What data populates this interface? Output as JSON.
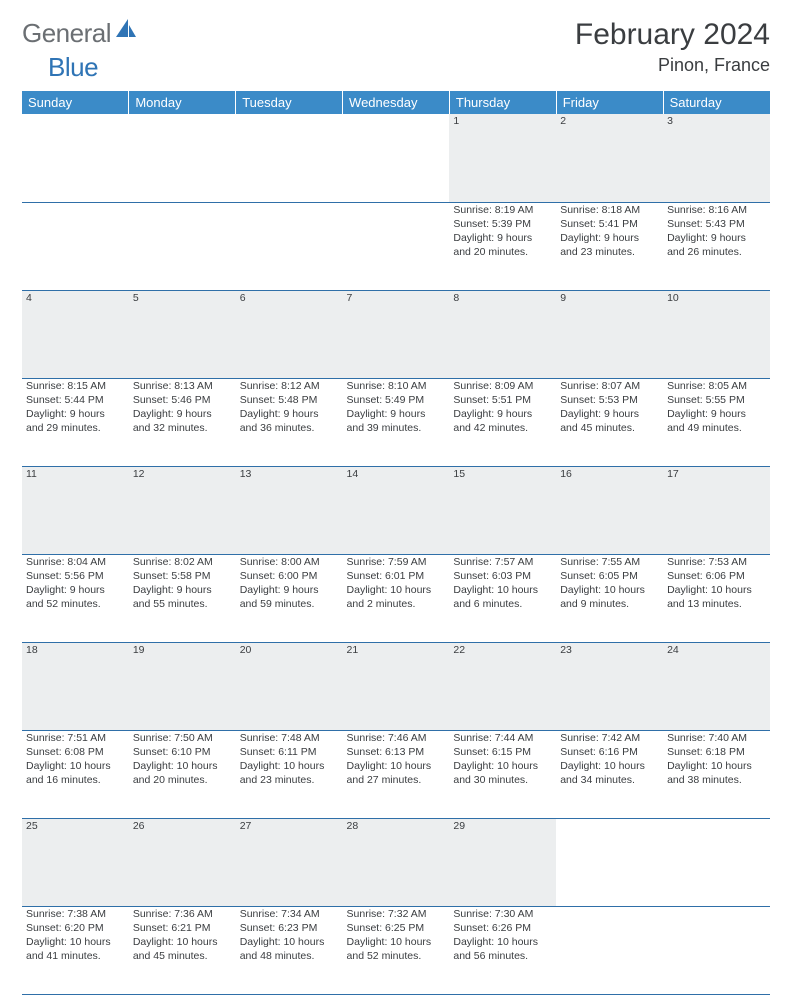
{
  "brand": {
    "general": "General",
    "blue": "Blue"
  },
  "title": "February 2024",
  "location": "Pinon, France",
  "weekdays": [
    "Sunday",
    "Monday",
    "Tuesday",
    "Wednesday",
    "Thursday",
    "Friday",
    "Saturday"
  ],
  "colors": {
    "header_bg": "#3b8bc8",
    "header_text": "#ffffff",
    "daynum_bg": "#eceeef",
    "daynum_text": "#5d6063",
    "body_text": "#3a3d40",
    "row_divider": "#2f6fa8",
    "logo_gray": "#6b6f73",
    "logo_blue": "#2f74b5",
    "background": "#ffffff"
  },
  "fonts": {
    "title_size_pt": 22,
    "location_size_pt": 14,
    "weekday_size_pt": 10,
    "daynum_size_pt": 9,
    "body_size_pt": 8
  },
  "layout": {
    "cols": 7,
    "rows": 5,
    "first_weekday_index": 4
  },
  "days": [
    {
      "n": 1,
      "sunrise": "8:19 AM",
      "sunset": "5:39 PM",
      "dl_h": 9,
      "dl_m": 20
    },
    {
      "n": 2,
      "sunrise": "8:18 AM",
      "sunset": "5:41 PM",
      "dl_h": 9,
      "dl_m": 23
    },
    {
      "n": 3,
      "sunrise": "8:16 AM",
      "sunset": "5:43 PM",
      "dl_h": 9,
      "dl_m": 26
    },
    {
      "n": 4,
      "sunrise": "8:15 AM",
      "sunset": "5:44 PM",
      "dl_h": 9,
      "dl_m": 29
    },
    {
      "n": 5,
      "sunrise": "8:13 AM",
      "sunset": "5:46 PM",
      "dl_h": 9,
      "dl_m": 32
    },
    {
      "n": 6,
      "sunrise": "8:12 AM",
      "sunset": "5:48 PM",
      "dl_h": 9,
      "dl_m": 36
    },
    {
      "n": 7,
      "sunrise": "8:10 AM",
      "sunset": "5:49 PM",
      "dl_h": 9,
      "dl_m": 39
    },
    {
      "n": 8,
      "sunrise": "8:09 AM",
      "sunset": "5:51 PM",
      "dl_h": 9,
      "dl_m": 42
    },
    {
      "n": 9,
      "sunrise": "8:07 AM",
      "sunset": "5:53 PM",
      "dl_h": 9,
      "dl_m": 45
    },
    {
      "n": 10,
      "sunrise": "8:05 AM",
      "sunset": "5:55 PM",
      "dl_h": 9,
      "dl_m": 49
    },
    {
      "n": 11,
      "sunrise": "8:04 AM",
      "sunset": "5:56 PM",
      "dl_h": 9,
      "dl_m": 52
    },
    {
      "n": 12,
      "sunrise": "8:02 AM",
      "sunset": "5:58 PM",
      "dl_h": 9,
      "dl_m": 55
    },
    {
      "n": 13,
      "sunrise": "8:00 AM",
      "sunset": "6:00 PM",
      "dl_h": 9,
      "dl_m": 59
    },
    {
      "n": 14,
      "sunrise": "7:59 AM",
      "sunset": "6:01 PM",
      "dl_h": 10,
      "dl_m": 2
    },
    {
      "n": 15,
      "sunrise": "7:57 AM",
      "sunset": "6:03 PM",
      "dl_h": 10,
      "dl_m": 6
    },
    {
      "n": 16,
      "sunrise": "7:55 AM",
      "sunset": "6:05 PM",
      "dl_h": 10,
      "dl_m": 9
    },
    {
      "n": 17,
      "sunrise": "7:53 AM",
      "sunset": "6:06 PM",
      "dl_h": 10,
      "dl_m": 13
    },
    {
      "n": 18,
      "sunrise": "7:51 AM",
      "sunset": "6:08 PM",
      "dl_h": 10,
      "dl_m": 16
    },
    {
      "n": 19,
      "sunrise": "7:50 AM",
      "sunset": "6:10 PM",
      "dl_h": 10,
      "dl_m": 20
    },
    {
      "n": 20,
      "sunrise": "7:48 AM",
      "sunset": "6:11 PM",
      "dl_h": 10,
      "dl_m": 23
    },
    {
      "n": 21,
      "sunrise": "7:46 AM",
      "sunset": "6:13 PM",
      "dl_h": 10,
      "dl_m": 27
    },
    {
      "n": 22,
      "sunrise": "7:44 AM",
      "sunset": "6:15 PM",
      "dl_h": 10,
      "dl_m": 30
    },
    {
      "n": 23,
      "sunrise": "7:42 AM",
      "sunset": "6:16 PM",
      "dl_h": 10,
      "dl_m": 34
    },
    {
      "n": 24,
      "sunrise": "7:40 AM",
      "sunset": "6:18 PM",
      "dl_h": 10,
      "dl_m": 38
    },
    {
      "n": 25,
      "sunrise": "7:38 AM",
      "sunset": "6:20 PM",
      "dl_h": 10,
      "dl_m": 41
    },
    {
      "n": 26,
      "sunrise": "7:36 AM",
      "sunset": "6:21 PM",
      "dl_h": 10,
      "dl_m": 45
    },
    {
      "n": 27,
      "sunrise": "7:34 AM",
      "sunset": "6:23 PM",
      "dl_h": 10,
      "dl_m": 48
    },
    {
      "n": 28,
      "sunrise": "7:32 AM",
      "sunset": "6:25 PM",
      "dl_h": 10,
      "dl_m": 52
    },
    {
      "n": 29,
      "sunrise": "7:30 AM",
      "sunset": "6:26 PM",
      "dl_h": 10,
      "dl_m": 56
    }
  ],
  "labels": {
    "sunrise": "Sunrise:",
    "sunset": "Sunset:",
    "daylight": "Daylight:",
    "hours": "hours",
    "and": "and",
    "minutes": "minutes."
  }
}
